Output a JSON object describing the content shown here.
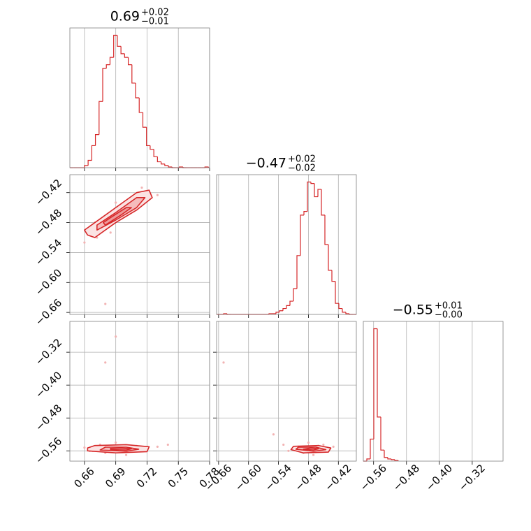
{
  "chart_data": {
    "type": "corner",
    "color": "#d62728",
    "point_color": "#f2b3b3",
    "contour_fills": [
      "#fbe3e3",
      "#f5bcbc",
      "#ee9a9a"
    ],
    "grid": true,
    "params": [
      {
        "title": "0.69",
        "title_plus": "+0.02",
        "title_minus": "−0.01",
        "lim": [
          0.646,
          0.78
        ],
        "ticks": [
          0.66,
          0.69,
          0.72,
          0.75,
          0.78
        ],
        "hist": {
          "ylim": [
            0,
            190
          ],
          "bins": [
            0.646,
            0.6495,
            0.653,
            0.6565,
            0.66,
            0.6635,
            0.667,
            0.6705,
            0.674,
            0.6775,
            0.681,
            0.6845,
            0.688,
            0.6915,
            0.695,
            0.6985,
            0.702,
            0.7055,
            0.709,
            0.7125,
            0.716,
            0.7195,
            0.723,
            0.7265,
            0.73,
            0.7335,
            0.737,
            0.7405,
            0.744,
            0.7475,
            0.751,
            0.7545,
            0.758,
            0.7615,
            0.765,
            0.7685,
            0.772,
            0.7755,
            0.779
          ],
          "counts": [
            0,
            0,
            0,
            0,
            3,
            10,
            30,
            45,
            90,
            135,
            140,
            150,
            180,
            165,
            155,
            150,
            140,
            115,
            95,
            75,
            55,
            30,
            25,
            15,
            8,
            5,
            3,
            1,
            0,
            0,
            1,
            0,
            0,
            0,
            0,
            0,
            0,
            1
          ]
        }
      },
      {
        "title": "−0.47",
        "title_plus": "+0.02",
        "title_minus": "−0.02",
        "lim": [
          -0.664,
          -0.384
        ],
        "ticks": [
          {
            "value": -0.66,
            "label": "−0.66"
          },
          {
            "value": -0.6,
            "label": "−0.60"
          },
          {
            "value": -0.54,
            "label": "−0.54"
          },
          {
            "value": -0.48,
            "label": "−0.48"
          },
          {
            "value": -0.42,
            "label": "−0.42"
          }
        ],
        "hist": {
          "ylim": [
            0,
            190
          ],
          "bins": [
            -0.664,
            -0.657,
            -0.65,
            -0.643,
            -0.636,
            -0.629,
            -0.622,
            -0.615,
            -0.608,
            -0.601,
            -0.594,
            -0.587,
            -0.58,
            -0.573,
            -0.566,
            -0.559,
            -0.552,
            -0.545,
            -0.538,
            -0.531,
            -0.524,
            -0.517,
            -0.51,
            -0.503,
            -0.496,
            -0.489,
            -0.482,
            -0.475,
            -0.468,
            -0.461,
            -0.454,
            -0.447,
            -0.44,
            -0.433,
            -0.426,
            -0.419,
            -0.412,
            -0.405,
            -0.398,
            -0.391,
            -0.384
          ],
          "counts": [
            0,
            0,
            1,
            0,
            0,
            0,
            0,
            0,
            0,
            0,
            0,
            0,
            0,
            0,
            0,
            1,
            1,
            3,
            5,
            8,
            12,
            18,
            35,
            80,
            135,
            140,
            180,
            178,
            160,
            170,
            135,
            95,
            60,
            45,
            15,
            8,
            3,
            1,
            0,
            0
          ]
        }
      },
      {
        "title": "−0.55",
        "title_plus": "+0.01",
        "title_minus": "−0.00",
        "lim": [
          -0.585,
          -0.245
        ],
        "ticks": [
          {
            "value": -0.56,
            "label": "−0.56"
          },
          {
            "value": -0.48,
            "label": "−0.48"
          },
          {
            "value": -0.4,
            "label": "−0.40"
          },
          {
            "value": -0.32,
            "label": "−0.32"
          }
        ],
        "hist": {
          "ylim": [
            0,
            190
          ],
          "bins": [
            -0.585,
            -0.5765,
            -0.568,
            -0.5595,
            -0.551,
            -0.5425,
            -0.534,
            -0.5255,
            -0.517,
            -0.5085,
            -0.5
          ],
          "counts": [
            0,
            3,
            30,
            180,
            60,
            15,
            5,
            3,
            2,
            1
          ]
        }
      }
    ],
    "pairs": [
      {
        "x": 0,
        "y": 1,
        "scatter": {
          "x": [
            0.66,
            0.665,
            0.672,
            0.68,
            0.69,
            0.7,
            0.705,
            0.715,
            0.72,
            0.73,
            0.675,
            0.695,
            0.67,
            0.685,
            0.68
          ],
          "y": [
            -0.52,
            -0.5,
            -0.51,
            -0.47,
            -0.44,
            -0.46,
            -0.43,
            -0.41,
            -0.42,
            -0.425,
            -0.49,
            -0.47,
            -0.48,
            -0.5,
            -0.643
          ]
        },
        "contours": [
          {
            "x": [
              0.663,
              0.67,
              0.69,
              0.71,
              0.725,
              0.722,
              0.71,
              0.69,
              0.67,
              0.66
            ],
            "y": [
              -0.505,
              -0.51,
              -0.48,
              -0.455,
              -0.43,
              -0.415,
              -0.42,
              -0.45,
              -0.48,
              -0.495
            ]
          },
          {
            "x": [
              0.672,
              0.69,
              0.71,
              0.718,
              0.71,
              0.69,
              0.672
            ],
            "y": [
              -0.495,
              -0.475,
              -0.45,
              -0.43,
              -0.43,
              -0.46,
              -0.485
            ]
          },
          {
            "x": [
              0.68,
              0.695,
              0.705,
              0.7,
              0.685,
              0.678
            ],
            "y": [
              -0.485,
              -0.465,
              -0.45,
              -0.45,
              -0.47,
              -0.48
            ]
          }
        ]
      },
      {
        "x": 0,
        "y": 2,
        "scatter": {
          "x": [
            0.66,
            0.668,
            0.675,
            0.68,
            0.69,
            0.7,
            0.71,
            0.72,
            0.73,
            0.74,
            0.68,
            0.69,
            0.665
          ],
          "y": [
            -0.552,
            -0.56,
            -0.545,
            -0.565,
            -0.54,
            -0.57,
            -0.548,
            -0.556,
            -0.55,
            -0.545,
            -0.345,
            -0.282,
            -0.56
          ]
        },
        "contours": [
          {
            "x": [
              0.663,
              0.69,
              0.72,
              0.722,
              0.7,
              0.67,
              0.663
            ],
            "y": [
              -0.56,
              -0.565,
              -0.562,
              -0.55,
              -0.545,
              -0.547,
              -0.553
            ]
          },
          {
            "x": [
              0.675,
              0.7,
              0.712,
              0.7,
              0.68
            ],
            "y": [
              -0.558,
              -0.561,
              -0.556,
              -0.551,
              -0.551
            ]
          },
          {
            "x": [
              0.685,
              0.7,
              0.705,
              0.695,
              0.685
            ],
            "y": [
              -0.557,
              -0.558,
              -0.555,
              -0.553,
              -0.554
            ]
          }
        ]
      },
      {
        "x": 1,
        "y": 2,
        "scatter": {
          "x": [
            -0.53,
            -0.52,
            -0.5,
            -0.49,
            -0.48,
            -0.47,
            -0.46,
            -0.45,
            -0.44,
            -0.43,
            -0.65,
            -0.55
          ],
          "y": [
            -0.545,
            -0.56,
            -0.55,
            -0.565,
            -0.54,
            -0.57,
            -0.548,
            -0.545,
            -0.56,
            -0.55,
            -0.345,
            -0.52
          ]
        },
        "contours": [
          {
            "x": [
              -0.515,
              -0.49,
              -0.44,
              -0.435,
              -0.46,
              -0.51
            ],
            "y": [
              -0.557,
              -0.565,
              -0.563,
              -0.553,
              -0.547,
              -0.549
            ]
          },
          {
            "x": [
              -0.505,
              -0.47,
              -0.445,
              -0.465,
              -0.5
            ],
            "y": [
              -0.556,
              -0.561,
              -0.557,
              -0.551,
              -0.551
            ]
          },
          {
            "x": [
              -0.49,
              -0.47,
              -0.46,
              -0.475
            ],
            "y": [
              -0.556,
              -0.558,
              -0.555,
              -0.553
            ]
          }
        ]
      }
    ]
  }
}
